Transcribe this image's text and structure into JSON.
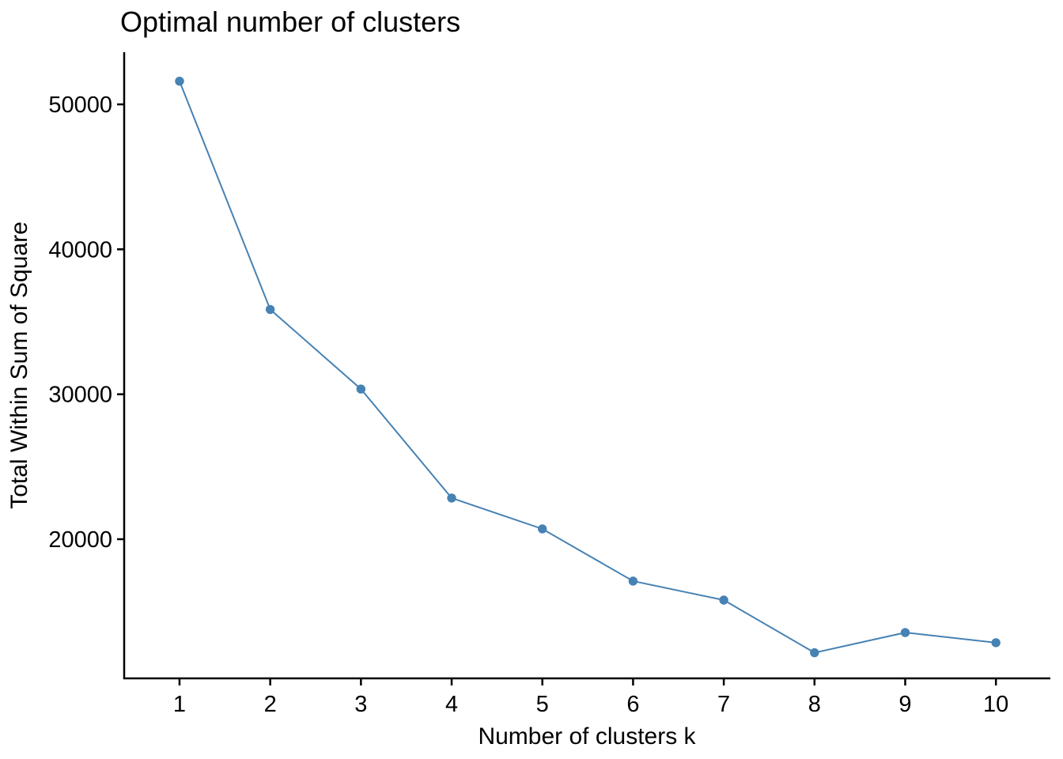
{
  "chart_data": {
    "type": "line",
    "title": "Optimal number of clusters",
    "xlabel": "Number of clusters k",
    "ylabel": "Total Within Sum of Square",
    "x": [
      1,
      2,
      3,
      4,
      5,
      6,
      7,
      8,
      9,
      10
    ],
    "series": [
      {
        "name": "total-within-sum-of-square",
        "values": [
          51600,
          35850,
          30360,
          22840,
          20710,
          17110,
          15800,
          12170,
          13560,
          12860
        ]
      }
    ],
    "xticks": [
      1,
      2,
      3,
      4,
      5,
      6,
      7,
      8,
      9,
      10
    ],
    "yticks": [
      20000,
      30000,
      40000,
      50000
    ],
    "xlim": [
      0.39,
      10.6
    ],
    "ylim": [
      10400,
      53600
    ],
    "grid": false,
    "legend_position": "none",
    "marker": "circle",
    "colors": {
      "line": "#4682B4",
      "point": "#4682B4",
      "axis": "#000000",
      "text": "#000000",
      "background": "#ffffff"
    }
  }
}
